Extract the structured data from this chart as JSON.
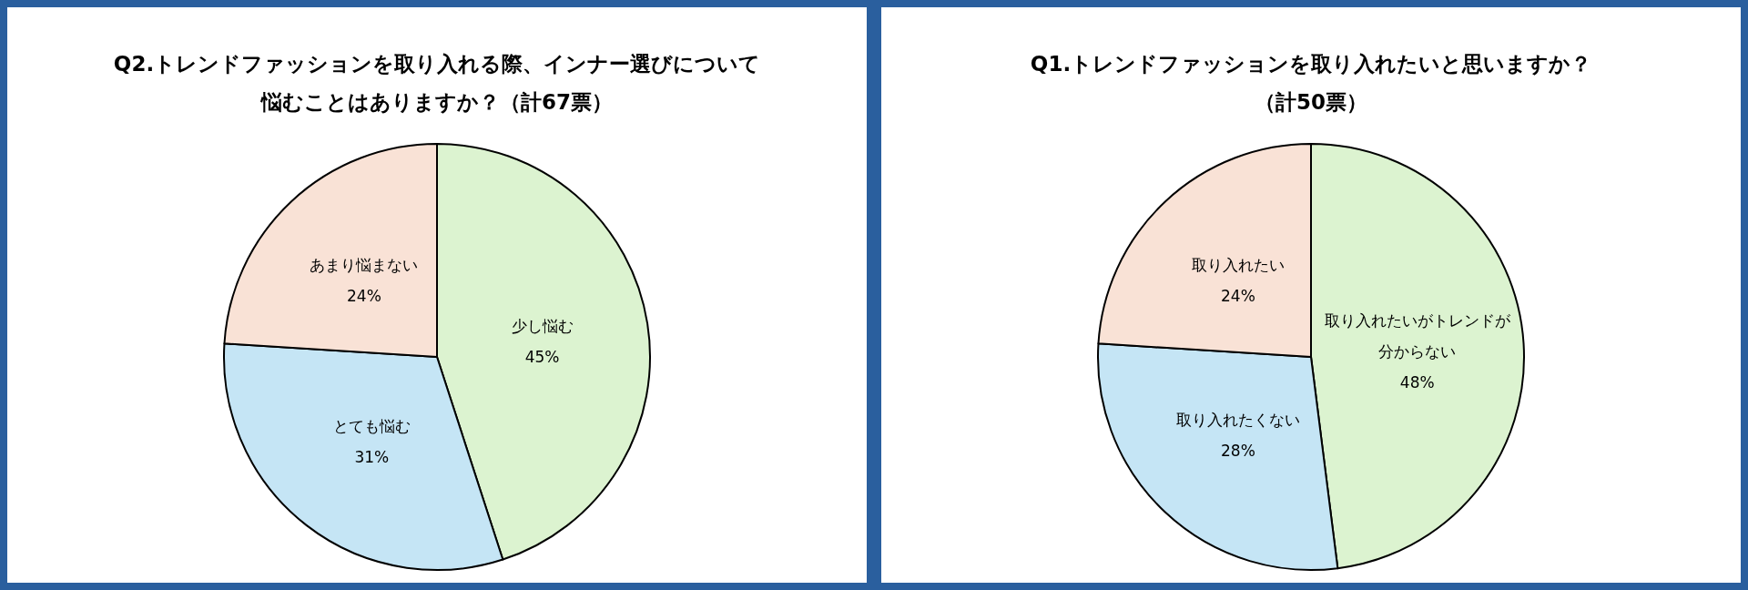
{
  "chart_data": [
    {
      "type": "pie",
      "title": "Q2.トレンドファッションを取り入れる際、インナー選びについて",
      "subtitle": "悩むことはありますか？（計67票）",
      "categories": [
        "少し悩む",
        "とても悩む",
        "あまり悩まない"
      ],
      "values": [
        45,
        31,
        24
      ],
      "colors": [
        "#dcf3d0",
        "#c5e5f5",
        "#f9e2d6"
      ],
      "value_labels": [
        "45%",
        "31%",
        "24%"
      ]
    },
    {
      "type": "pie",
      "title": "Q1.トレンドファッションを取り入れたいと思いますか？",
      "subtitle": "（計50票）",
      "categories": [
        "取り入れたいがトレンドが分からない",
        "取り入れたくない",
        "取り入れたい"
      ],
      "values": [
        48,
        28,
        24
      ],
      "colors": [
        "#dcf3d0",
        "#c5e5f5",
        "#f9e2d6"
      ],
      "value_labels": [
        "48%",
        "28%",
        "24%"
      ]
    }
  ]
}
